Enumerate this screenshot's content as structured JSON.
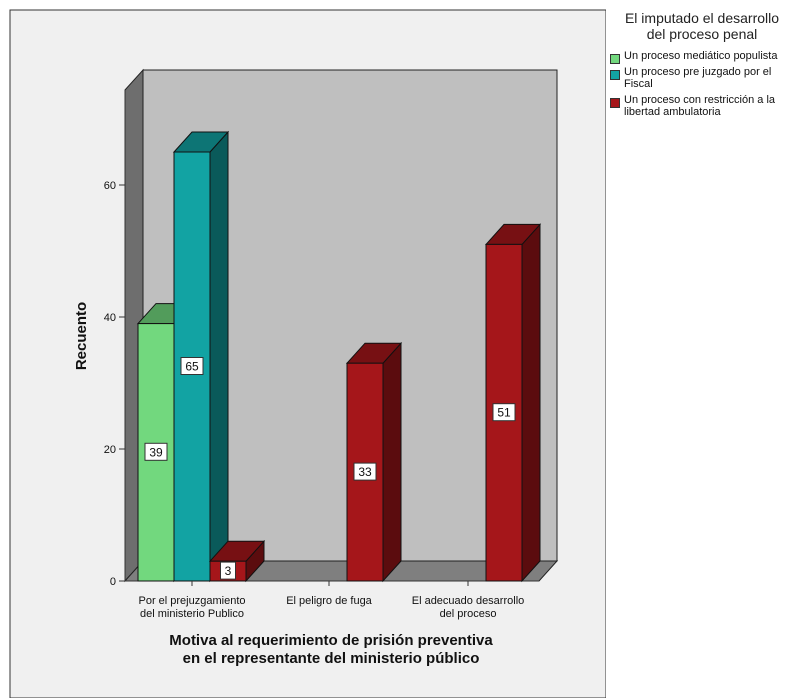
{
  "chart_data": {
    "type": "bar",
    "title": "",
    "xlabel": "Motiva al requerimiento de prisión preventiva\nen el representante del ministerio público",
    "ylabel": "Recuento",
    "ylim": [
      0,
      75
    ],
    "yticks": [
      0,
      20,
      40,
      60
    ],
    "categories": [
      "Por el prejuzgamiento\ndel ministerio Publico",
      "El peligro de fuga",
      "El adecuado desarrollo\ndel proceso"
    ],
    "legend_title": "El imputado el desarrollo\ndel proceso penal",
    "legend_position": "top-right",
    "grid": false,
    "series": [
      {
        "name": "Un proceso mediático populista",
        "color": "#72d87e",
        "values": [
          39,
          null,
          null
        ]
      },
      {
        "name": "Un proceso pre juzgado por el Fiscal",
        "color": "#12a3a3",
        "values": [
          65,
          null,
          null
        ]
      },
      {
        "name": "Un proceso con restricción a la libertad ambulatoria",
        "color": "#a5161a",
        "values": [
          3,
          33,
          51
        ]
      }
    ]
  }
}
